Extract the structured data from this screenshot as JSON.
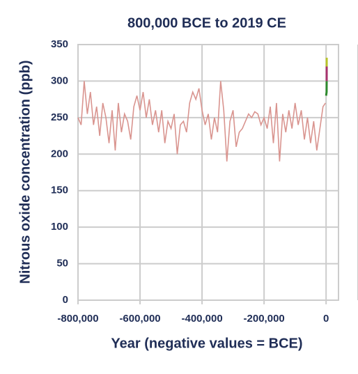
{
  "chart_data": {
    "type": "line",
    "title": "800,000 BCE to 2019 CE",
    "x_label": "Year (negative values = BCE)",
    "y_label": "Nitrous oxide concentration (ppb)",
    "xlim": [
      -800000,
      40000
    ],
    "ylim": [
      0,
      350
    ],
    "xticks": [
      {
        "value": -800000,
        "label": "-800,000"
      },
      {
        "value": -600000,
        "label": "-600,000"
      },
      {
        "value": -400000,
        "label": "-400,000"
      },
      {
        "value": -200000,
        "label": "-200,000"
      },
      0
    ],
    "yticks": [
      0,
      50,
      100,
      150,
      200,
      250,
      300,
      350
    ],
    "grid": true,
    "series": [
      {
        "color": "#d9948f",
        "x": [
          -800000,
          -790000,
          -780000,
          -770000,
          -760000,
          -750000,
          -740000,
          -730000,
          -720000,
          -710000,
          -700000,
          -690000,
          -680000,
          -670000,
          -660000,
          -650000,
          -640000,
          -630000,
          -620000,
          -610000,
          -600000,
          -590000,
          -580000,
          -570000,
          -560000,
          -550000,
          -540000,
          -530000,
          -520000,
          -510000,
          -500000,
          -490000,
          -480000,
          -470000,
          -460000,
          -450000,
          -440000,
          -430000,
          -420000,
          -410000,
          -400000,
          -390000,
          -380000,
          -370000,
          -360000,
          -350000,
          -340000,
          -330000,
          -320000,
          -310000,
          -300000,
          -290000,
          -280000,
          -270000,
          -260000,
          -250000,
          -240000,
          -230000,
          -220000,
          -210000,
          -200000,
          -190000,
          -180000,
          -170000,
          -160000,
          -150000,
          -140000,
          -130000,
          -120000,
          -110000,
          -100000,
          -90000,
          -80000,
          -70000,
          -60000,
          -50000,
          -40000,
          -30000,
          -20000,
          -10000,
          -2000
        ],
        "values": [
          250,
          240,
          300,
          255,
          285,
          240,
          265,
          225,
          270,
          250,
          215,
          260,
          205,
          270,
          230,
          255,
          245,
          220,
          265,
          280,
          260,
          285,
          250,
          275,
          240,
          260,
          230,
          260,
          215,
          245,
          235,
          255,
          200,
          240,
          245,
          230,
          270,
          285,
          275,
          290,
          260,
          240,
          255,
          220,
          250,
          230,
          300,
          260,
          190,
          245,
          260,
          210,
          230,
          235,
          245,
          255,
          250,
          258,
          255,
          240,
          250,
          235,
          265,
          215,
          270,
          190,
          255,
          230,
          260,
          235,
          270,
          240,
          260,
          220,
          250,
          215,
          245,
          205,
          235,
          265,
          270
        ]
      },
      {
        "color": "#2e8b2e",
        "x": [
          0,
          1700,
          1900
        ],
        "values": [
          280,
          285,
          300
        ]
      },
      {
        "color": "#a8336e",
        "x": [
          1900,
          1950,
          1980
        ],
        "values": [
          300,
          305,
          320
        ]
      },
      {
        "color": "#b8c42a",
        "x": [
          1980,
          2000,
          2019
        ],
        "values": [
          320,
          328,
          332
        ]
      }
    ]
  }
}
